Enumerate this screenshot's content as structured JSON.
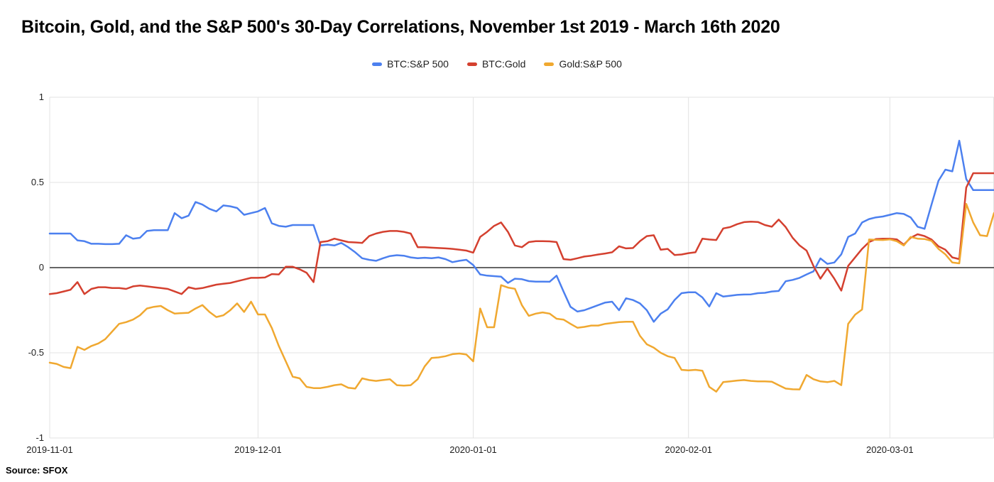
{
  "title": "Bitcoin, Gold, and the S&P 500's 30-Day Correlations, November 1st 2019 - March 16th 2020",
  "source": "Source: SFOX",
  "colors": {
    "background": "#ffffff",
    "gridline": "#e3e3e3",
    "zero_line": "#666666",
    "axis_label": "#212121",
    "title_text": "#000000"
  },
  "chart_data": {
    "type": "line",
    "title": "Bitcoin, Gold, and the S&P 500's 30-Day Correlations, November 1st 2019 - March 16th 2020",
    "legend_position": "top",
    "grid": true,
    "x_axis": {
      "unit": "days since 2019-11-01",
      "start_date": "2019-11-01",
      "end_date": "2020-03-16",
      "total_days": 136,
      "ticks": [
        {
          "day": 0,
          "label": "2019-11-01"
        },
        {
          "day": 30,
          "label": "2019-12-01"
        },
        {
          "day": 61,
          "label": "2020-01-01"
        },
        {
          "day": 92,
          "label": "2020-02-01"
        },
        {
          "day": 121,
          "label": "2020-03-01"
        }
      ]
    },
    "y_axis": {
      "min": -1,
      "max": 1,
      "ticks": [
        {
          "value": 1,
          "label": "1"
        },
        {
          "value": 0.5,
          "label": "0.5"
        },
        {
          "value": 0,
          "label": "0"
        },
        {
          "value": -0.5,
          "label": "-0.5"
        },
        {
          "value": -1,
          "label": "-1"
        }
      ]
    },
    "series": [
      {
        "id": "btc-sp500",
        "name": "BTC:S&P 500",
        "color": "#4C80EF",
        "values": [
          0.2,
          0.2,
          0.2,
          0.2,
          0.16,
          0.155,
          0.14,
          0.14,
          0.138,
          0.138,
          0.14,
          0.19,
          0.17,
          0.175,
          0.215,
          0.22,
          0.22,
          0.22,
          0.32,
          0.29,
          0.305,
          0.385,
          0.37,
          0.345,
          0.33,
          0.365,
          0.36,
          0.35,
          0.31,
          0.32,
          0.33,
          0.35,
          0.26,
          0.245,
          0.24,
          0.25,
          0.25,
          0.25,
          0.25,
          0.13,
          0.135,
          0.13,
          0.145,
          0.12,
          0.09,
          0.055,
          0.046,
          0.04,
          0.055,
          0.068,
          0.073,
          0.07,
          0.06,
          0.055,
          0.058,
          0.055,
          0.06,
          0.05,
          0.032,
          0.04,
          0.046,
          0.015,
          -0.04,
          -0.047,
          -0.05,
          -0.053,
          -0.09,
          -0.065,
          -0.068,
          -0.079,
          -0.082,
          -0.082,
          -0.083,
          -0.047,
          -0.14,
          -0.23,
          -0.258,
          -0.25,
          -0.235,
          -0.22,
          -0.205,
          -0.2,
          -0.25,
          -0.18,
          -0.19,
          -0.21,
          -0.25,
          -0.318,
          -0.27,
          -0.245,
          -0.19,
          -0.15,
          -0.145,
          -0.145,
          -0.175,
          -0.228,
          -0.15,
          -0.17,
          -0.165,
          -0.16,
          -0.158,
          -0.157,
          -0.15,
          -0.148,
          -0.14,
          -0.137,
          -0.08,
          -0.072,
          -0.06,
          -0.04,
          -0.022,
          0.054,
          0.022,
          0.03,
          0.078,
          0.18,
          0.2,
          0.265,
          0.285,
          0.295,
          0.3,
          0.31,
          0.32,
          0.315,
          0.295,
          0.24,
          0.228,
          0.37,
          0.51,
          0.575,
          0.565,
          0.745,
          0.52,
          0.455,
          0.455,
          0.455,
          0.455
        ]
      },
      {
        "id": "btc-gold",
        "name": "BTC:Gold",
        "color": "#D4402F",
        "values": [
          -0.155,
          -0.15,
          -0.14,
          -0.13,
          -0.085,
          -0.155,
          -0.125,
          -0.115,
          -0.115,
          -0.12,
          -0.12,
          -0.125,
          -0.11,
          -0.105,
          -0.11,
          -0.115,
          -0.12,
          -0.125,
          -0.14,
          -0.155,
          -0.115,
          -0.125,
          -0.12,
          -0.11,
          -0.1,
          -0.095,
          -0.09,
          -0.08,
          -0.07,
          -0.06,
          -0.06,
          -0.058,
          -0.038,
          -0.04,
          0.005,
          0.005,
          -0.01,
          -0.03,
          -0.085,
          0.15,
          0.155,
          0.17,
          0.16,
          0.15,
          0.148,
          0.145,
          0.185,
          0.2,
          0.21,
          0.215,
          0.215,
          0.21,
          0.2,
          0.12,
          0.12,
          0.117,
          0.115,
          0.113,
          0.11,
          0.105,
          0.1,
          0.088,
          0.18,
          0.21,
          0.245,
          0.265,
          0.21,
          0.13,
          0.12,
          0.15,
          0.155,
          0.155,
          0.154,
          0.15,
          0.05,
          0.046,
          0.055,
          0.065,
          0.07,
          0.077,
          0.083,
          0.09,
          0.125,
          0.113,
          0.115,
          0.155,
          0.185,
          0.19,
          0.105,
          0.11,
          0.074,
          0.077,
          0.085,
          0.09,
          0.17,
          0.165,
          0.162,
          0.23,
          0.238,
          0.255,
          0.267,
          0.27,
          0.268,
          0.25,
          0.24,
          0.282,
          0.238,
          0.175,
          0.13,
          0.1,
          0.01,
          -0.065,
          -0.005,
          -0.065,
          -0.135,
          0.01,
          0.06,
          0.11,
          0.15,
          0.168,
          0.17,
          0.17,
          0.166,
          0.135,
          0.175,
          0.196,
          0.185,
          0.165,
          0.125,
          0.105,
          0.06,
          0.05,
          0.47,
          0.554,
          0.554,
          0.554,
          0.554
        ]
      },
      {
        "id": "gold-sp500",
        "name": "Gold:S&P 500",
        "color": "#F0A830",
        "values": [
          -0.558,
          -0.565,
          -0.583,
          -0.59,
          -0.465,
          -0.483,
          -0.46,
          -0.445,
          -0.42,
          -0.375,
          -0.33,
          -0.32,
          -0.305,
          -0.28,
          -0.24,
          -0.23,
          -0.225,
          -0.25,
          -0.27,
          -0.267,
          -0.265,
          -0.24,
          -0.22,
          -0.26,
          -0.29,
          -0.28,
          -0.25,
          -0.21,
          -0.26,
          -0.2,
          -0.275,
          -0.275,
          -0.355,
          -0.46,
          -0.55,
          -0.64,
          -0.65,
          -0.7,
          -0.707,
          -0.707,
          -0.7,
          -0.69,
          -0.685,
          -0.705,
          -0.71,
          -0.65,
          -0.66,
          -0.665,
          -0.66,
          -0.655,
          -0.69,
          -0.693,
          -0.69,
          -0.655,
          -0.58,
          -0.53,
          -0.527,
          -0.52,
          -0.508,
          -0.504,
          -0.51,
          -0.55,
          -0.24,
          -0.35,
          -0.35,
          -0.103,
          -0.117,
          -0.124,
          -0.22,
          -0.283,
          -0.27,
          -0.263,
          -0.27,
          -0.3,
          -0.305,
          -0.33,
          -0.353,
          -0.348,
          -0.34,
          -0.34,
          -0.33,
          -0.325,
          -0.32,
          -0.318,
          -0.318,
          -0.4,
          -0.45,
          -0.47,
          -0.5,
          -0.52,
          -0.53,
          -0.6,
          -0.603,
          -0.6,
          -0.605,
          -0.7,
          -0.728,
          -0.672,
          -0.668,
          -0.663,
          -0.66,
          -0.665,
          -0.668,
          -0.668,
          -0.67,
          -0.69,
          -0.71,
          -0.714,
          -0.715,
          -0.63,
          -0.655,
          -0.668,
          -0.672,
          -0.665,
          -0.69,
          -0.33,
          -0.276,
          -0.246,
          0.165,
          0.163,
          0.162,
          0.166,
          0.155,
          0.13,
          0.18,
          0.17,
          0.168,
          0.157,
          0.11,
          0.078,
          0.03,
          0.025,
          0.374,
          0.265,
          0.19,
          0.185,
          0.32
        ]
      }
    ]
  }
}
